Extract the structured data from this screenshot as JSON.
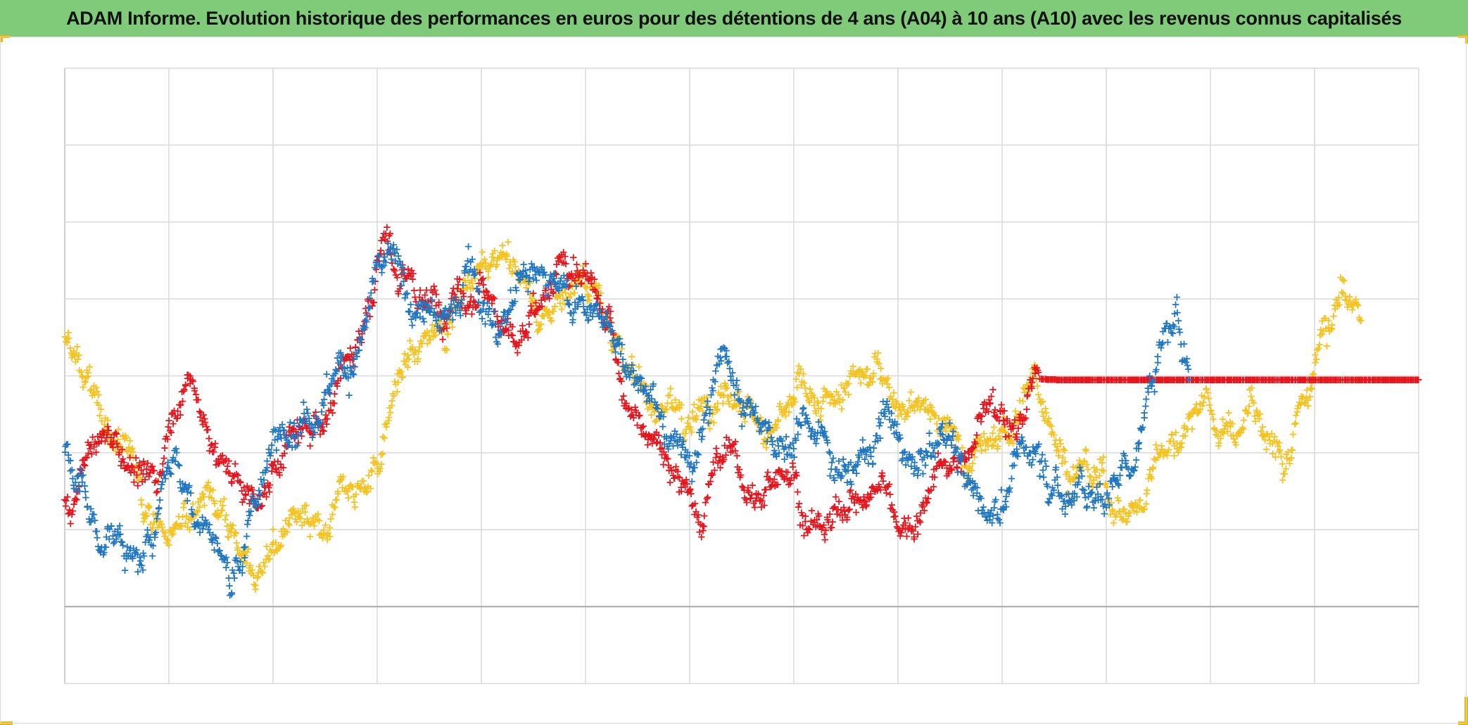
{
  "title": "ADAM Informe. Evolution historique des performances en euros pour des détentions de 4 ans (A04) à 10 ans (A10) avec les revenus connus capitalisés",
  "colors": {
    "title_bar": "#7fcb7a",
    "accent_corners": "#f2b705",
    "grid": "#d9d9d9",
    "axis": "#bfbfbf",
    "series_blue": "#1f77c4",
    "series_red": "#e8141c",
    "series_yellow": "#f6c21f"
  },
  "chart_data": {
    "type": "scatter",
    "marker": "plus",
    "grid": true,
    "legend": "none",
    "axis_labels_visible": false,
    "x_range": [
      0,
      13
    ],
    "y_range": [
      0,
      8
    ],
    "x_gridlines": 13,
    "y_gridlines": 8,
    "series": [
      {
        "color": "#e8141c",
        "anchors": [
          [
            0.0,
            2.3
          ],
          [
            0.2,
            2.7
          ],
          [
            0.45,
            3.1
          ],
          [
            0.7,
            2.8
          ],
          [
            0.9,
            2.6
          ],
          [
            1.0,
            3.5
          ],
          [
            1.1,
            4.0
          ],
          [
            1.25,
            3.7
          ],
          [
            1.4,
            3.2
          ],
          [
            1.55,
            2.8
          ],
          [
            1.75,
            2.4
          ],
          [
            1.9,
            2.2
          ],
          [
            2.0,
            2.6
          ],
          [
            2.1,
            3.0
          ],
          [
            2.3,
            3.3
          ],
          [
            2.5,
            3.6
          ],
          [
            2.7,
            4.1
          ],
          [
            2.85,
            4.6
          ],
          [
            3.0,
            5.4
          ],
          [
            3.1,
            5.9
          ],
          [
            3.2,
            5.2
          ],
          [
            3.35,
            5.0
          ],
          [
            3.5,
            4.9
          ],
          [
            3.7,
            5.3
          ],
          [
            3.9,
            5.0
          ],
          [
            4.0,
            5.3
          ],
          [
            4.15,
            4.8
          ],
          [
            4.35,
            4.3
          ],
          [
            4.5,
            4.6
          ],
          [
            4.7,
            5.2
          ],
          [
            4.9,
            5.3
          ],
          [
            5.1,
            5.0
          ],
          [
            5.25,
            4.4
          ],
          [
            5.4,
            3.8
          ],
          [
            5.55,
            3.4
          ],
          [
            5.75,
            2.8
          ],
          [
            5.9,
            2.5
          ],
          [
            6.05,
            2.3
          ],
          [
            6.25,
            2.9
          ],
          [
            6.4,
            3.0
          ],
          [
            6.55,
            2.5
          ],
          [
            6.7,
            2.2
          ],
          [
            6.85,
            2.9
          ],
          [
            7.0,
            2.8
          ],
          [
            7.15,
            2.3
          ],
          [
            7.3,
            2.0
          ],
          [
            7.5,
            2.2
          ],
          [
            7.7,
            2.4
          ],
          [
            7.85,
            2.7
          ],
          [
            8.0,
            2.2
          ],
          [
            8.2,
            2.3
          ],
          [
            8.35,
            2.7
          ],
          [
            8.55,
            3.0
          ],
          [
            8.7,
            3.1
          ],
          [
            8.8,
            3.4
          ],
          [
            8.9,
            3.7
          ],
          [
            9.0,
            3.5
          ],
          [
            9.1,
            3.2
          ],
          [
            9.2,
            3.6
          ],
          [
            9.35,
            3.95
          ],
          [
            13.0,
            3.95
          ]
        ],
        "noise": 0.15
      },
      {
        "color": "#1f77c4",
        "anchors": [
          [
            0.0,
            2.9
          ],
          [
            0.15,
            2.5
          ],
          [
            0.3,
            2.0
          ],
          [
            0.5,
            2.1
          ],
          [
            0.6,
            1.8
          ],
          [
            0.75,
            1.5
          ],
          [
            0.9,
            2.2
          ],
          [
            1.05,
            3.0
          ],
          [
            1.2,
            2.6
          ],
          [
            1.35,
            2.2
          ],
          [
            1.5,
            1.8
          ],
          [
            1.6,
            1.4
          ],
          [
            1.7,
            1.8
          ],
          [
            1.8,
            2.4
          ],
          [
            1.95,
            2.9
          ],
          [
            2.1,
            3.2
          ],
          [
            2.25,
            3.5
          ],
          [
            2.4,
            3.7
          ],
          [
            2.55,
            4.0
          ],
          [
            2.7,
            4.2
          ],
          [
            2.85,
            4.4
          ],
          [
            3.0,
            5.2
          ],
          [
            3.15,
            5.4
          ],
          [
            3.3,
            5.0
          ],
          [
            3.45,
            5.0
          ],
          [
            3.6,
            4.6
          ],
          [
            3.75,
            5.0
          ],
          [
            3.9,
            5.5
          ],
          [
            4.0,
            5.1
          ],
          [
            4.15,
            4.7
          ],
          [
            4.3,
            5.0
          ],
          [
            4.45,
            5.3
          ],
          [
            4.6,
            5.2
          ],
          [
            4.75,
            5.0
          ],
          [
            4.9,
            4.9
          ],
          [
            5.1,
            5.0
          ],
          [
            5.25,
            4.6
          ],
          [
            5.45,
            4.2
          ],
          [
            5.6,
            3.5
          ],
          [
            5.75,
            3.2
          ],
          [
            5.9,
            3.0
          ],
          [
            6.05,
            3.2
          ],
          [
            6.2,
            3.8
          ],
          [
            6.35,
            4.2
          ],
          [
            6.5,
            3.8
          ],
          [
            6.65,
            3.5
          ],
          [
            6.8,
            3.3
          ],
          [
            7.0,
            3.0
          ],
          [
            7.15,
            3.4
          ],
          [
            7.3,
            3.1
          ],
          [
            7.45,
            2.9
          ],
          [
            7.6,
            2.9
          ],
          [
            7.75,
            3.1
          ],
          [
            7.85,
            3.5
          ],
          [
            8.0,
            3.2
          ],
          [
            8.15,
            2.9
          ],
          [
            8.3,
            3.0
          ],
          [
            8.45,
            3.3
          ],
          [
            8.6,
            3.0
          ],
          [
            8.75,
            2.6
          ],
          [
            8.85,
            2.3
          ],
          [
            9.0,
            2.4
          ],
          [
            9.15,
            2.8
          ],
          [
            9.3,
            3.2
          ],
          [
            9.45,
            2.7
          ],
          [
            9.6,
            2.4
          ],
          [
            9.75,
            2.7
          ],
          [
            9.9,
            2.4
          ],
          [
            10.05,
            2.6
          ],
          [
            10.2,
            3.0
          ],
          [
            10.35,
            3.6
          ],
          [
            10.5,
            4.5
          ],
          [
            10.65,
            4.7
          ],
          [
            10.8,
            4.2
          ]
        ],
        "noise": 0.16
      },
      {
        "color": "#f6c21f",
        "anchors": [
          [
            0.0,
            4.4
          ],
          [
            0.15,
            3.9
          ],
          [
            0.35,
            3.5
          ],
          [
            0.55,
            3.1
          ],
          [
            0.7,
            2.8
          ],
          [
            0.85,
            2.3
          ],
          [
            1.0,
            1.8
          ],
          [
            1.15,
            2.4
          ],
          [
            1.35,
            2.6
          ],
          [
            1.55,
            2.2
          ],
          [
            1.7,
            1.9
          ],
          [
            1.8,
            1.5
          ],
          [
            2.0,
            2.0
          ],
          [
            2.2,
            2.2
          ],
          [
            2.35,
            1.8
          ],
          [
            2.55,
            1.9
          ],
          [
            2.7,
            2.4
          ],
          [
            2.85,
            2.6
          ],
          [
            3.0,
            3.0
          ],
          [
            3.15,
            3.8
          ],
          [
            3.3,
            4.2
          ],
          [
            3.45,
            4.4
          ],
          [
            3.6,
            4.8
          ],
          [
            3.75,
            5.0
          ],
          [
            3.9,
            5.2
          ],
          [
            4.05,
            5.4
          ],
          [
            4.2,
            5.6
          ],
          [
            4.35,
            5.2
          ],
          [
            4.5,
            5.0
          ],
          [
            4.65,
            4.8
          ],
          [
            4.85,
            5.3
          ],
          [
            5.05,
            5.2
          ],
          [
            5.25,
            4.8
          ],
          [
            5.4,
            4.2
          ],
          [
            5.55,
            3.8
          ],
          [
            5.7,
            3.6
          ],
          [
            5.85,
            3.4
          ],
          [
            6.0,
            3.3
          ],
          [
            6.15,
            3.8
          ],
          [
            6.3,
            4.0
          ],
          [
            6.45,
            3.8
          ],
          [
            6.6,
            3.5
          ],
          [
            6.75,
            3.3
          ],
          [
            6.9,
            3.6
          ],
          [
            7.05,
            3.9
          ],
          [
            7.2,
            3.5
          ],
          [
            7.35,
            3.6
          ],
          [
            7.5,
            3.8
          ],
          [
            7.65,
            4.0
          ],
          [
            7.8,
            4.1
          ],
          [
            7.95,
            3.9
          ],
          [
            8.1,
            3.7
          ],
          [
            8.25,
            3.6
          ],
          [
            8.4,
            3.4
          ],
          [
            8.6,
            3.2
          ],
          [
            8.8,
            3.1
          ],
          [
            9.0,
            3.2
          ],
          [
            9.15,
            3.4
          ],
          [
            9.3,
            3.9
          ],
          [
            9.45,
            3.6
          ],
          [
            9.6,
            3.2
          ],
          [
            9.75,
            2.9
          ],
          [
            9.9,
            2.6
          ],
          [
            10.05,
            2.4
          ],
          [
            10.2,
            2.2
          ],
          [
            10.35,
            2.5
          ],
          [
            10.5,
            3.0
          ],
          [
            10.65,
            3.2
          ],
          [
            10.8,
            3.4
          ],
          [
            10.95,
            3.6
          ],
          [
            11.1,
            3.4
          ],
          [
            11.25,
            3.3
          ],
          [
            11.4,
            3.6
          ],
          [
            11.55,
            3.1
          ],
          [
            11.7,
            2.7
          ],
          [
            11.85,
            3.4
          ],
          [
            12.0,
            4.1
          ],
          [
            12.15,
            4.6
          ],
          [
            12.25,
            5.0
          ],
          [
            12.35,
            4.8
          ],
          [
            12.45,
            4.6
          ]
        ],
        "noise": 0.15
      }
    ]
  }
}
